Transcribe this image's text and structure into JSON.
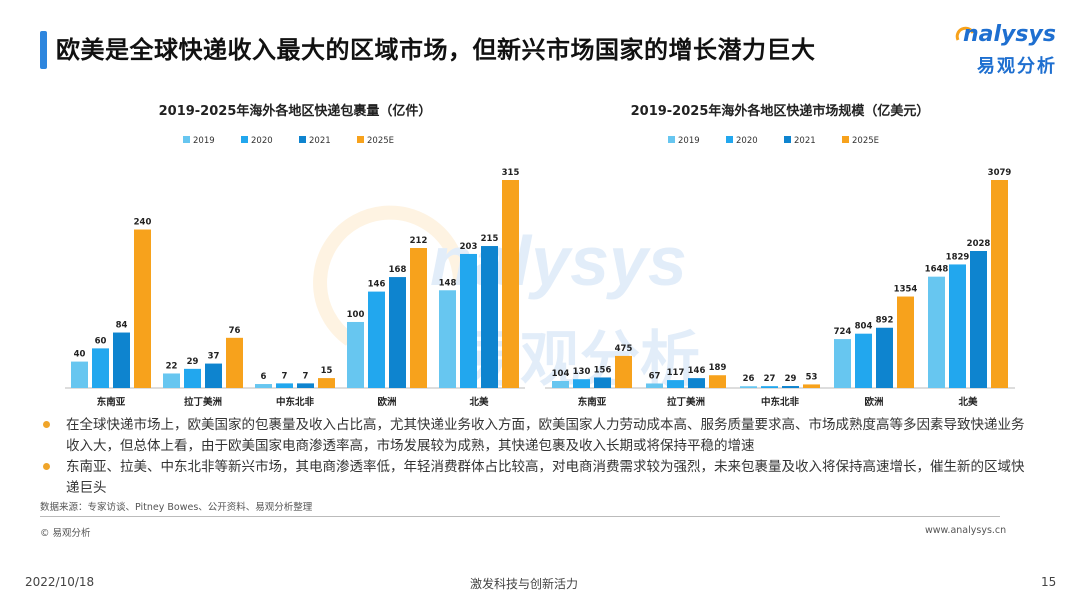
{
  "header": {
    "title": "欧美是全球快递收入最大的区域市场，但新兴市场国家的增长潜力巨大",
    "logo_en": "nalysys",
    "logo_cn": "易观分析"
  },
  "watermark": {
    "text_en": "nalysys",
    "text_cn": "易观分析"
  },
  "colors": {
    "2019": "#67c6f0",
    "2020": "#22a7ee",
    "2021": "#0e84cf",
    "2025E": "#f7a21c"
  },
  "chart_data": [
    {
      "type": "bar",
      "title": "2019-2025年海外各地区快递包裹量（亿件）",
      "categories": [
        "东南亚",
        "拉丁美洲",
        "中东北非",
        "欧洲",
        "北美"
      ],
      "series": [
        {
          "name": "2019",
          "values": [
            40,
            22,
            6,
            100,
            148
          ]
        },
        {
          "name": "2020",
          "values": [
            60,
            29,
            7,
            146,
            203
          ]
        },
        {
          "name": "2021",
          "values": [
            84,
            37,
            7,
            168,
            215
          ]
        },
        {
          "name": "2025E",
          "values": [
            240,
            76,
            15,
            212,
            315
          ]
        }
      ],
      "ylim": [
        0,
        315
      ],
      "grid": false,
      "legend": "top-center"
    },
    {
      "type": "bar",
      "title": "2019-2025年海外各地区快递市场规模（亿美元）",
      "categories": [
        "东南亚",
        "拉丁美洲",
        "中东北非",
        "欧洲",
        "北美"
      ],
      "series": [
        {
          "name": "2019",
          "values": [
            104,
            67,
            26,
            724,
            1648
          ]
        },
        {
          "name": "2020",
          "values": [
            130,
            117,
            27,
            804,
            1829
          ]
        },
        {
          "name": "2021",
          "values": [
            156,
            146,
            29,
            892,
            2028
          ]
        },
        {
          "name": "2025E",
          "values": [
            475,
            189,
            53,
            1354,
            3079
          ]
        }
      ],
      "ylim": [
        0,
        3079
      ],
      "grid": false,
      "legend": "top-center"
    }
  ],
  "bullets": [
    "在全球快递市场上，欧美国家的包裹量及收入占比高，尤其快递业务收入方面，欧美国家人力劳动成本高、服务质量要求高、市场成熟度高等多因素导致快递业务收入大，但总体上看，由于欧美国家电商渗透率高，市场发展较为成熟，其快递包裹及收入长期或将保持平稳的增速",
    "东南亚、拉美、中东北非等新兴市场，其电商渗透率低，年轻消费群体占比较高，对电商消费需求较为强烈，未来包裹量及收入将保持高速增长，催生新的区域快递巨头"
  ],
  "footer": {
    "source": "数据来源：专家访谈、Pitney Bowes、公开资料、易观分析整理",
    "copyright": "© 易观分析",
    "website": "www.analysys.cn",
    "date": "2022/10/18",
    "slogan": "激发科技与创新活力",
    "page": "15"
  }
}
